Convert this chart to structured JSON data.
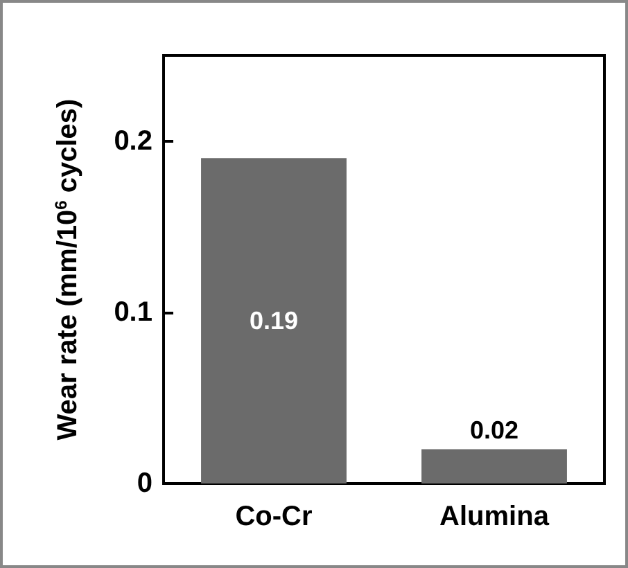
{
  "chart_data": {
    "type": "bar",
    "ylabel": "Wear rate (mm/10$^{6}$ cycles)",
    "categories": [
      "Co-Cr",
      "Alumina"
    ],
    "values": [
      0.19,
      0.02
    ],
    "color": "#6b6b6b",
    "ylim": [
      0,
      0.25
    ],
    "yticks": [
      {
        "value": 0,
        "label": "0"
      },
      {
        "value": 0.1,
        "label": "0.1"
      },
      {
        "value": 0.2,
        "label": "0.2"
      }
    ],
    "data_labels": true,
    "grid": false
  }
}
